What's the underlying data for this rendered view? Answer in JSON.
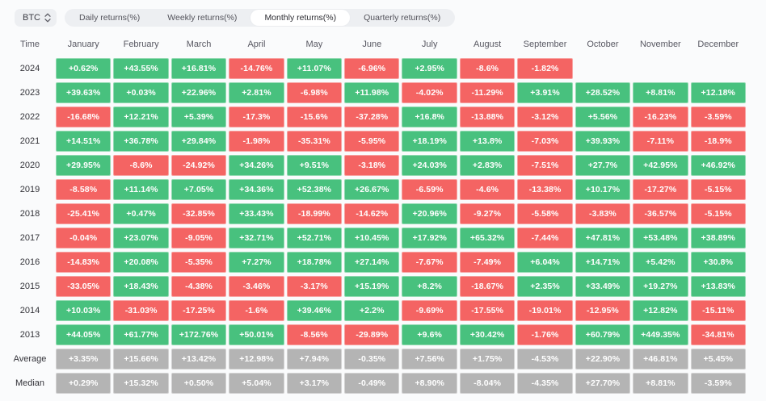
{
  "header": {
    "symbol": "BTC",
    "tabs": [
      {
        "label": "Daily returns(%)",
        "active": false
      },
      {
        "label": "Weekly returns(%)",
        "active": false
      },
      {
        "label": "Monthly returns(%)",
        "active": true
      },
      {
        "label": "Quarterly returns(%)",
        "active": false
      }
    ]
  },
  "colors": {
    "positive": "#48c17e",
    "negative": "#f46463",
    "neutral": "#b4b4b4",
    "cell_text": "#ffffff"
  },
  "chart_data": {
    "type": "heatmap",
    "title": "Monthly returns(%)",
    "unit": "%",
    "legend": "green = positive monthly return, red = negative monthly return, gray = summary rows",
    "columns": [
      "Time",
      "January",
      "February",
      "March",
      "April",
      "May",
      "June",
      "July",
      "August",
      "September",
      "October",
      "November",
      "December"
    ],
    "rows": [
      {
        "label": "2024",
        "neutral": false,
        "values": [
          "+0.62%",
          "+43.55%",
          "+16.81%",
          "-14.76%",
          "+11.07%",
          "-6.96%",
          "+2.95%",
          "-8.6%",
          "-1.82%",
          "",
          "",
          ""
        ]
      },
      {
        "label": "2023",
        "neutral": false,
        "values": [
          "+39.63%",
          "+0.03%",
          "+22.96%",
          "+2.81%",
          "-6.98%",
          "+11.98%",
          "-4.02%",
          "-11.29%",
          "+3.91%",
          "+28.52%",
          "+8.81%",
          "+12.18%"
        ]
      },
      {
        "label": "2022",
        "neutral": false,
        "values": [
          "-16.68%",
          "+12.21%",
          "+5.39%",
          "-17.3%",
          "-15.6%",
          "-37.28%",
          "+16.8%",
          "-13.88%",
          "-3.12%",
          "+5.56%",
          "-16.23%",
          "-3.59%"
        ]
      },
      {
        "label": "2021",
        "neutral": false,
        "values": [
          "+14.51%",
          "+36.78%",
          "+29.84%",
          "-1.98%",
          "-35.31%",
          "-5.95%",
          "+18.19%",
          "+13.8%",
          "-7.03%",
          "+39.93%",
          "-7.11%",
          "-18.9%"
        ]
      },
      {
        "label": "2020",
        "neutral": false,
        "values": [
          "+29.95%",
          "-8.6%",
          "-24.92%",
          "+34.26%",
          "+9.51%",
          "-3.18%",
          "+24.03%",
          "+2.83%",
          "-7.51%",
          "+27.7%",
          "+42.95%",
          "+46.92%"
        ]
      },
      {
        "label": "2019",
        "neutral": false,
        "values": [
          "-8.58%",
          "+11.14%",
          "+7.05%",
          "+34.36%",
          "+52.38%",
          "+26.67%",
          "-6.59%",
          "-4.6%",
          "-13.38%",
          "+10.17%",
          "-17.27%",
          "-5.15%"
        ]
      },
      {
        "label": "2018",
        "neutral": false,
        "values": [
          "-25.41%",
          "+0.47%",
          "-32.85%",
          "+33.43%",
          "-18.99%",
          "-14.62%",
          "+20.96%",
          "-9.27%",
          "-5.58%",
          "-3.83%",
          "-36.57%",
          "-5.15%"
        ]
      },
      {
        "label": "2017",
        "neutral": false,
        "values": [
          "-0.04%",
          "+23.07%",
          "-9.05%",
          "+32.71%",
          "+52.71%",
          "+10.45%",
          "+17.92%",
          "+65.32%",
          "-7.44%",
          "+47.81%",
          "+53.48%",
          "+38.89%"
        ]
      },
      {
        "label": "2016",
        "neutral": false,
        "values": [
          "-14.83%",
          "+20.08%",
          "-5.35%",
          "+7.27%",
          "+18.78%",
          "+27.14%",
          "-7.67%",
          "-7.49%",
          "+6.04%",
          "+14.71%",
          "+5.42%",
          "+30.8%"
        ]
      },
      {
        "label": "2015",
        "neutral": false,
        "values": [
          "-33.05%",
          "+18.43%",
          "-4.38%",
          "-3.46%",
          "-3.17%",
          "+15.19%",
          "+8.2%",
          "-18.67%",
          "+2.35%",
          "+33.49%",
          "+19.27%",
          "+13.83%"
        ]
      },
      {
        "label": "2014",
        "neutral": false,
        "values": [
          "+10.03%",
          "-31.03%",
          "-17.25%",
          "-1.6%",
          "+39.46%",
          "+2.2%",
          "-9.69%",
          "-17.55%",
          "-19.01%",
          "-12.95%",
          "+12.82%",
          "-15.11%"
        ]
      },
      {
        "label": "2013",
        "neutral": false,
        "values": [
          "+44.05%",
          "+61.77%",
          "+172.76%",
          "+50.01%",
          "-8.56%",
          "-29.89%",
          "+9.6%",
          "+30.42%",
          "-1.76%",
          "+60.79%",
          "+449.35%",
          "-34.81%"
        ]
      },
      {
        "label": "Average",
        "neutral": true,
        "values": [
          "+3.35%",
          "+15.66%",
          "+13.42%",
          "+12.98%",
          "+7.94%",
          "-0.35%",
          "+7.56%",
          "+1.75%",
          "-4.53%",
          "+22.90%",
          "+46.81%",
          "+5.45%"
        ]
      },
      {
        "label": "Median",
        "neutral": true,
        "values": [
          "+0.29%",
          "+15.32%",
          "+0.50%",
          "+5.04%",
          "+3.17%",
          "-0.49%",
          "+8.90%",
          "-8.04%",
          "-4.35%",
          "+27.70%",
          "+8.81%",
          "-3.59%"
        ]
      }
    ]
  }
}
